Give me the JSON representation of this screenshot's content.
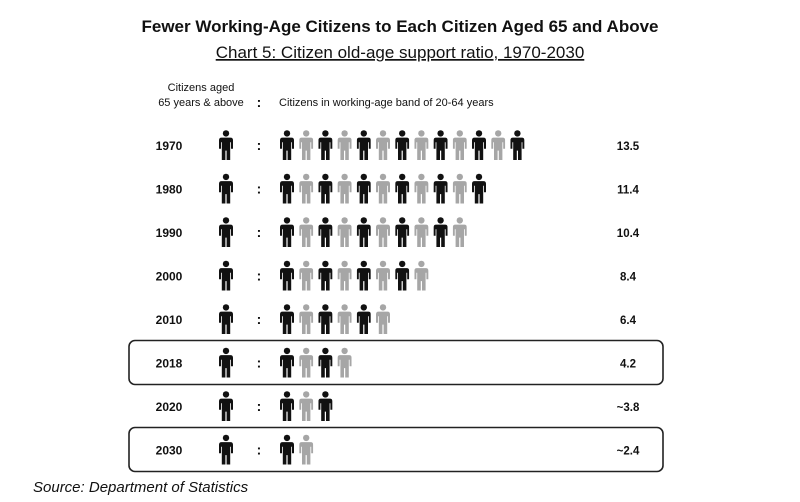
{
  "chart_data": {
    "type": "pictograph",
    "title": "Fewer Working-Age Citizens to Each Citizen Aged 65 and Above",
    "subtitle": "Chart 5: Citizen old-age support ratio, 1970-2030",
    "left_header": [
      "Citizens aged",
      "65 years & above"
    ],
    "separator": ":",
    "right_header": "Citizens in working-age band of 20-64 years",
    "rows": [
      {
        "year": "1970",
        "value": 13.5,
        "label": "13.5",
        "highlight": false
      },
      {
        "year": "1980",
        "value": 11.4,
        "label": "11.4",
        "highlight": false
      },
      {
        "year": "1990",
        "value": 10.4,
        "label": "10.4",
        "highlight": false
      },
      {
        "year": "2000",
        "value": 8.4,
        "label": "8.4",
        "highlight": false
      },
      {
        "year": "2010",
        "value": 6.4,
        "label": "6.4",
        "highlight": false
      },
      {
        "year": "2018",
        "value": 4.2,
        "label": "4.2",
        "highlight": true
      },
      {
        "year": "2020",
        "value": 3.8,
        "label": "~3.8",
        "highlight": false
      },
      {
        "year": "2030",
        "value": 2.4,
        "label": "~2.4",
        "highlight": true
      }
    ],
    "source": "Source: Department of Statistics"
  },
  "colors": {
    "dark": "#111111",
    "light": "#a6a6a6",
    "frame": "#222222"
  }
}
